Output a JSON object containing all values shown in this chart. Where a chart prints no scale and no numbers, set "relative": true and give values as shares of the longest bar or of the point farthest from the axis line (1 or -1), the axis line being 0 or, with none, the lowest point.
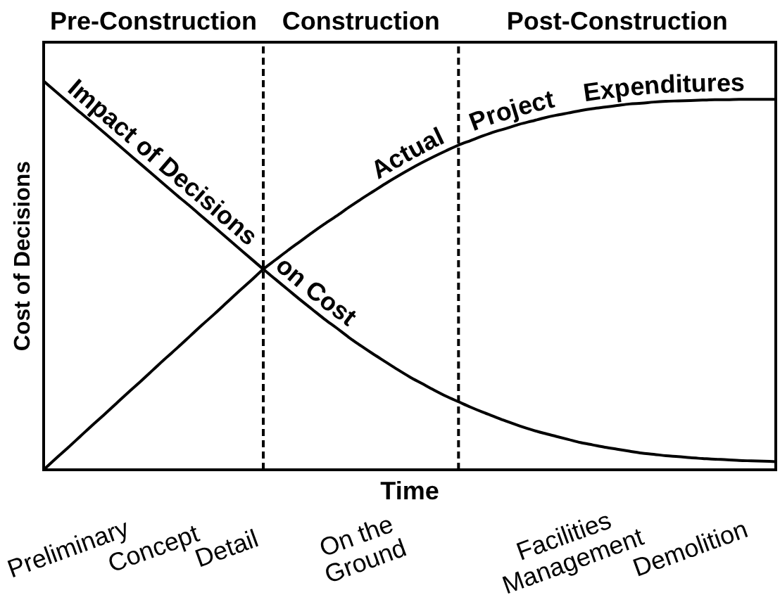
{
  "chart_data": {
    "type": "line",
    "relative": true,
    "xlabel": "Time",
    "ylabel": "Cost of Decisions",
    "annotations": [
      "Pre-Construction",
      "Construction",
      "Post-Construction"
    ],
    "categories": [
      null,
      null,
      "Preliminary",
      null,
      null,
      null,
      null,
      null,
      null,
      "Concept",
      null,
      null,
      null,
      null,
      null,
      "Detail",
      null,
      null,
      null,
      null,
      null,
      null,
      null,
      null,
      null,
      null,
      "On the Ground",
      null,
      null,
      null,
      null,
      null,
      null,
      null,
      null,
      null,
      null,
      null,
      null,
      null,
      null,
      null,
      null,
      "Facilities Management",
      null,
      null,
      null,
      null,
      null,
      null,
      null,
      null,
      null,
      "Demolition",
      null,
      null,
      null,
      null,
      null,
      null,
      null
    ],
    "series": [
      {
        "name": "Impact of Decisions on Cost",
        "color": "#000000",
        "values": [
          1,
          0.973,
          0.946,
          0.919,
          0.893,
          0.866,
          0.839,
          0.812,
          0.785,
          0.758,
          0.731,
          0.704,
          0.678,
          0.651,
          0.624,
          0.597,
          0.57,
          0.543,
          0.516,
          0.49,
          0.464,
          0.438,
          0.413,
          0.388,
          0.365,
          0.341,
          0.319,
          0.298,
          0.278,
          0.258,
          0.239,
          0.222,
          0.205,
          0.189,
          0.175,
          0.161,
          0.148,
          0.136,
          0.124,
          0.113,
          0.103,
          0.094,
          0.086,
          0.078,
          0.07,
          0.064,
          0.058,
          0.053,
          0.048,
          0.043,
          0.04,
          0.036,
          0.034,
          0.031,
          0.029,
          0.027,
          0.026,
          0.024,
          0.023,
          0.022,
          0.021
        ]
      },
      {
        "name": "Actual Project Expenditures",
        "color": "#000000",
        "values": [
          0,
          0.029,
          0.057,
          0.086,
          0.115,
          0.143,
          0.172,
          0.201,
          0.229,
          0.258,
          0.287,
          0.315,
          0.344,
          0.373,
          0.401,
          0.43,
          0.459,
          0.487,
          0.516,
          0.54,
          0.564,
          0.587,
          0.61,
          0.632,
          0.653,
          0.675,
          0.696,
          0.716,
          0.736,
          0.755,
          0.773,
          0.79,
          0.806,
          0.821,
          0.835,
          0.847,
          0.859,
          0.87,
          0.879,
          0.889,
          0.897,
          0.905,
          0.912,
          0.918,
          0.924,
          0.929,
          0.933,
          0.937,
          0.941,
          0.943,
          0.946,
          0.948,
          0.949,
          0.95,
          0.951,
          0.952,
          0.952,
          0.953,
          0.953,
          0.953,
          0.953
        ]
      }
    ]
  }
}
